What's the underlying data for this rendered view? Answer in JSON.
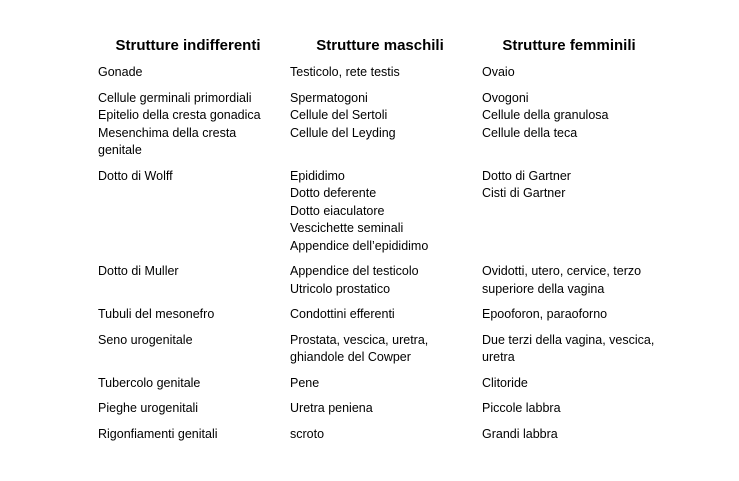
{
  "table": {
    "headers": [
      "Strutture indifferenti",
      "Strutture maschili",
      "Strutture femminili"
    ],
    "rows": [
      {
        "indifferenti": [
          "Gonade"
        ],
        "maschili": [
          "Testicolo, rete testis"
        ],
        "femminili": [
          "Ovaio"
        ]
      },
      {
        "indifferenti": [
          "Cellule germinali primordiali",
          "Epitelio della cresta gonadica",
          "Mesenchima della cresta genitale"
        ],
        "maschili": [
          "Spermatogoni",
          "Cellule del Sertoli",
          "Cellule del Leyding"
        ],
        "femminili": [
          "Ovogoni",
          "Cellule della granulosa",
          "Cellule della teca"
        ]
      },
      {
        "indifferenti": [
          "Dotto di Wolff"
        ],
        "maschili": [
          "Epididimo",
          "Dotto deferente",
          "Dotto eiaculatore",
          "Vescichette seminali",
          "Appendice dell’epididimo"
        ],
        "femminili": [
          "Dotto di Gartner",
          "Cisti di Gartner"
        ]
      },
      {
        "indifferenti": [
          "Dotto di Muller"
        ],
        "maschili": [
          "Appendice del testicolo",
          "Utricolo prostatico"
        ],
        "femminili": [
          "Ovidotti, utero, cervice, terzo superiore della vagina"
        ]
      },
      {
        "indifferenti": [
          "Tubuli del mesonefro"
        ],
        "maschili": [
          "Condottini efferenti"
        ],
        "femminili": [
          "Epooforon, paraoforno"
        ]
      },
      {
        "indifferenti": [
          "Seno urogenitale"
        ],
        "maschili": [
          "Prostata, vescica, uretra, ghiandole del Cowper"
        ],
        "femminili": [
          "Due terzi della vagina, vescica, uretra"
        ]
      },
      {
        "indifferenti": [
          "Tubercolo genitale"
        ],
        "maschili": [
          "Pene"
        ],
        "femminili": [
          "Clitoride"
        ]
      },
      {
        "indifferenti": [
          "Pieghe urogenitali"
        ],
        "maschili": [
          "Uretra peniena"
        ],
        "femminili": [
          "Piccole labbra"
        ]
      },
      {
        "indifferenti": [
          "Rigonfiamenti genitali"
        ],
        "maschili": [
          "scroto"
        ],
        "femminili": [
          "Grandi labbra"
        ]
      }
    ]
  }
}
